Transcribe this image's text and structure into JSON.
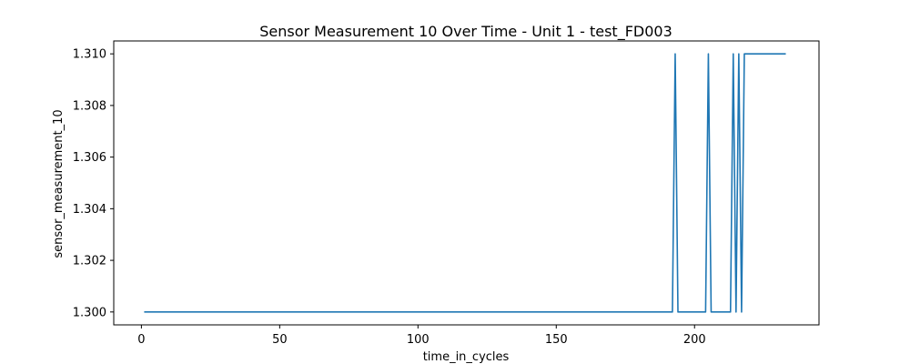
{
  "chart_data": {
    "type": "line",
    "title": "Sensor Measurement 10 Over Time - Unit 1 - test_FD003",
    "xlabel": "time_in_cycles",
    "ylabel": "sensor_measurement_10",
    "xlim": [
      -10,
      245
    ],
    "ylim": [
      1.2995,
      1.3105
    ],
    "xticks": [
      0,
      50,
      100,
      150,
      200
    ],
    "xtick_labels": [
      "0",
      "50",
      "100",
      "150",
      "200"
    ],
    "yticks": [
      1.3,
      1.302,
      1.304,
      1.306,
      1.308,
      1.31
    ],
    "ytick_labels": [
      "1.300",
      "1.302",
      "1.304",
      "1.306",
      "1.308",
      "1.310"
    ],
    "grid": false,
    "legend": "none",
    "series_color": "#1f77b4",
    "series": [
      {
        "points": [
          [
            1,
            1.3
          ],
          [
            192,
            1.3
          ],
          [
            193,
            1.31
          ],
          [
            194,
            1.3
          ],
          [
            204,
            1.3
          ],
          [
            205,
            1.31
          ],
          [
            206,
            1.3
          ],
          [
            213,
            1.3
          ],
          [
            214,
            1.31
          ],
          [
            215,
            1.3
          ],
          [
            216,
            1.31
          ],
          [
            217,
            1.3
          ],
          [
            218,
            1.31
          ],
          [
            233,
            1.31
          ]
        ]
      }
    ]
  }
}
